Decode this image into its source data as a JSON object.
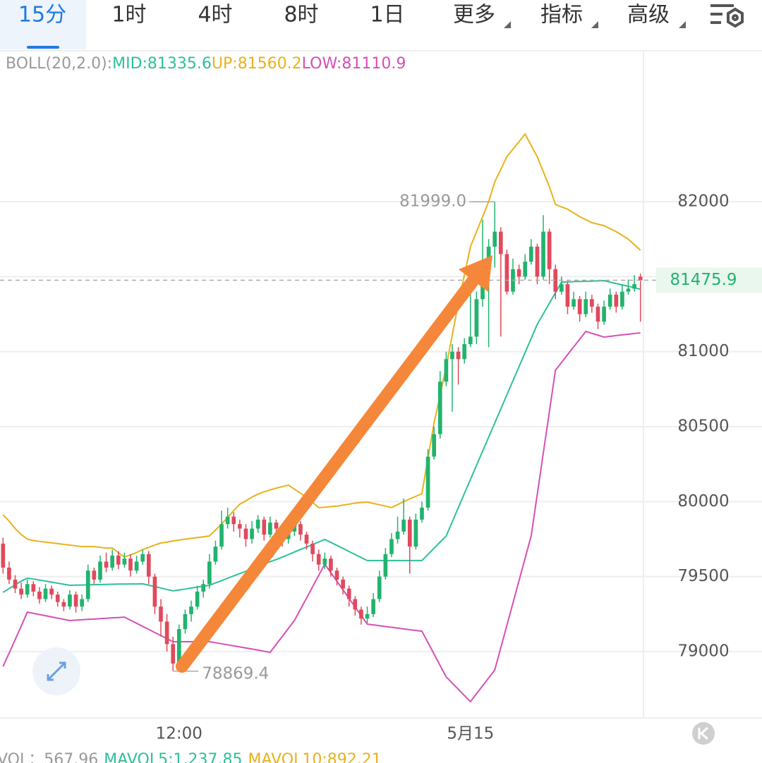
{
  "tabs": [
    "15分",
    "1时",
    "4时",
    "8时",
    "1日",
    "更多",
    "指标",
    "高级"
  ],
  "chart_data": {
    "type": "candlestick",
    "legend": {
      "label": "BOLL(20,2.0):",
      "items": [
        "MID:81335.6",
        "UP:81560.2",
        "LOW:81110.9"
      ]
    },
    "volume_legend": [
      "VOL：567.96",
      "MAVOL5:1,237.85",
      "MAVOL10:892.21"
    ],
    "categories": [
      null,
      null,
      null,
      null,
      null,
      null,
      null,
      null,
      null,
      null,
      null,
      null,
      null,
      null,
      null,
      null,
      null,
      null,
      null,
      null,
      null,
      null,
      null,
      null,
      null,
      null,
      null,
      null,
      null,
      "12:00",
      null,
      null,
      null,
      null,
      null,
      null,
      null,
      null,
      null,
      null,
      null,
      null,
      null,
      null,
      null,
      null,
      null,
      null,
      null,
      null,
      null,
      null,
      null,
      null,
      null,
      null,
      null,
      null,
      null,
      null,
      null,
      null,
      null,
      null,
      null,
      null,
      null,
      null,
      null,
      null,
      null,
      null,
      null,
      null,
      null,
      null,
      null,
      "5月15",
      null,
      null,
      null,
      null,
      null,
      null,
      null,
      null,
      null,
      null,
      null,
      null,
      null,
      null,
      null,
      null,
      null,
      null,
      null,
      null,
      null,
      null,
      null,
      null,
      null,
      null,
      null,
      null
    ],
    "ohlc": [
      [
        79720,
        79760,
        79520,
        79560
      ],
      [
        79560,
        79600,
        79450,
        79480
      ],
      [
        79480,
        79510,
        79390,
        79420
      ],
      [
        79420,
        79460,
        79350,
        79380
      ],
      [
        79380,
        79480,
        79360,
        79450
      ],
      [
        79450,
        79470,
        79370,
        79400
      ],
      [
        79400,
        79430,
        79320,
        79350
      ],
      [
        79350,
        79450,
        79330,
        79420
      ],
      [
        79420,
        79440,
        79350,
        79380
      ],
      [
        79380,
        79400,
        79300,
        79330
      ],
      [
        79330,
        79350,
        79270,
        79300
      ],
      [
        79300,
        79410,
        79280,
        79380
      ],
      [
        79380,
        79400,
        79260,
        79300
      ],
      [
        79300,
        79380,
        79270,
        79350
      ],
      [
        79350,
        79580,
        79330,
        79540
      ],
      [
        79540,
        79560,
        79450,
        79480
      ],
      [
        79480,
        79640,
        79460,
        79600
      ],
      [
        79600,
        79660,
        79530,
        79560
      ],
      [
        79560,
        79680,
        79540,
        79640
      ],
      [
        79640,
        79670,
        79550,
        79580
      ],
      [
        79580,
        79660,
        79560,
        79620
      ],
      [
        79620,
        79650,
        79500,
        79540
      ],
      [
        79540,
        79640,
        79520,
        79600
      ],
      [
        79600,
        79680,
        79580,
        79650
      ],
      [
        79650,
        79670,
        79450,
        79500
      ],
      [
        79500,
        79520,
        79250,
        79300
      ],
      [
        79300,
        79350,
        79100,
        79200
      ],
      [
        79200,
        79250,
        79000,
        79050
      ],
      [
        79050,
        79100,
        78869.4,
        78920
      ],
      [
        78920,
        79180,
        78900,
        79150
      ],
      [
        79150,
        79280,
        79120,
        79250
      ],
      [
        79250,
        79340,
        79200,
        79300
      ],
      [
        79300,
        79440,
        79280,
        79400
      ],
      [
        79400,
        79480,
        79360,
        79450
      ],
      [
        79450,
        79650,
        79420,
        79600
      ],
      [
        79600,
        79740,
        79580,
        79700
      ],
      [
        79700,
        79940,
        79680,
        79850
      ],
      [
        79850,
        79960,
        79820,
        79900
      ],
      [
        79900,
        79930,
        79800,
        79850
      ],
      [
        79850,
        79880,
        79760,
        79820
      ],
      [
        79820,
        79850,
        79700,
        79750
      ],
      [
        79750,
        79870,
        79720,
        79820
      ],
      [
        79820,
        79910,
        79790,
        79880
      ],
      [
        79880,
        79900,
        79740,
        79780
      ],
      [
        79780,
        79900,
        79760,
        79860
      ],
      [
        79860,
        79880,
        79780,
        79820
      ],
      [
        79820,
        79850,
        79700,
        79750
      ],
      [
        79750,
        79840,
        79720,
        79800
      ],
      [
        79800,
        79880,
        79770,
        79850
      ],
      [
        79850,
        79870,
        79740,
        79780
      ],
      [
        79780,
        79800,
        79680,
        79720
      ],
      [
        79720,
        79740,
        79600,
        79650
      ],
      [
        79650,
        79680,
        79540,
        79580
      ],
      [
        79580,
        79660,
        79550,
        79620
      ],
      [
        79620,
        79640,
        79500,
        79540
      ],
      [
        79540,
        79560,
        79440,
        79480
      ],
      [
        79480,
        79500,
        79380,
        79420
      ],
      [
        79420,
        79440,
        79300,
        79350
      ],
      [
        79350,
        79370,
        79240,
        79280
      ],
      [
        79280,
        79300,
        79180,
        79220
      ],
      [
        79220,
        79300,
        79190,
        79250
      ],
      [
        79250,
        79390,
        79230,
        79350
      ],
      [
        79350,
        79540,
        79330,
        79500
      ],
      [
        79500,
        79690,
        79480,
        79650
      ],
      [
        79650,
        79790,
        79630,
        79750
      ],
      [
        79750,
        79900,
        79720,
        79800
      ],
      [
        79800,
        80020,
        79780,
        79880
      ],
      [
        79880,
        79900,
        79520,
        79700
      ],
      [
        79700,
        79920,
        79680,
        79880
      ],
      [
        79880,
        80000,
        79860,
        79960
      ],
      [
        79960,
        80350,
        79940,
        80300
      ],
      [
        80300,
        80500,
        80280,
        80450
      ],
      [
        80450,
        80870,
        80420,
        80800
      ],
      [
        80800,
        81000,
        80770,
        80950
      ],
      [
        80950,
        81050,
        80600,
        81000
      ],
      [
        81000,
        81030,
        80780,
        80950
      ],
      [
        80950,
        81090,
        80920,
        81050
      ],
      [
        81050,
        81400,
        81030,
        81100
      ],
      [
        81100,
        81400,
        81050,
        81350
      ],
      [
        81350,
        81880,
        81300,
        81600
      ],
      [
        81600,
        81750,
        81030,
        81700
      ],
      [
        81700,
        81999,
        81560,
        81800
      ],
      [
        81800,
        81830,
        81100,
        81650
      ],
      [
        81650,
        81680,
        81380,
        81400
      ],
      [
        81400,
        81620,
        81380,
        81550
      ],
      [
        81550,
        81580,
        81450,
        81500
      ],
      [
        81500,
        81650,
        81480,
        81600
      ],
      [
        81600,
        81750,
        81580,
        81700
      ],
      [
        81700,
        81720,
        81450,
        81500
      ],
      [
        81500,
        81910,
        81480,
        81800
      ],
      [
        81800,
        81820,
        81450,
        81550
      ],
      [
        81550,
        81580,
        81350,
        81400
      ],
      [
        81400,
        81500,
        81380,
        81450
      ],
      [
        81450,
        81470,
        81250,
        81300
      ],
      [
        81300,
        81400,
        81280,
        81350
      ],
      [
        81350,
        81370,
        81200,
        81250
      ],
      [
        81250,
        81400,
        81230,
        81350
      ],
      [
        81350,
        81380,
        81260,
        81300
      ],
      [
        81300,
        81320,
        81150,
        81200
      ],
      [
        81200,
        81340,
        81180,
        81300
      ],
      [
        81300,
        81420,
        81280,
        81380
      ],
      [
        81380,
        81400,
        81260,
        81300
      ],
      [
        81300,
        81450,
        81280,
        81400
      ],
      [
        81400,
        81480,
        81380,
        81420
      ],
      [
        81420,
        81510,
        81400,
        81450
      ],
      [
        81500,
        81520,
        81200,
        81475.9
      ]
    ],
    "up_color": "#22b36e",
    "down_color": "#e04a5c",
    "series": [
      {
        "color": "#2cc09a",
        "values": [
          79395,
          79420,
          79445,
          79470,
          79489,
          79484,
          79477,
          79470,
          79463,
          79456,
          79449,
          79442,
          79443,
          79444,
          79445,
          79446,
          79447,
          79448,
          79449,
          79450,
          79450,
          79451,
          79451,
          79452,
          79443,
          79433,
          79424,
          79414,
          79405,
          79411,
          79417,
          79424,
          79430,
          79436,
          79442,
          79458,
          79473,
          79489,
          79505,
          79520,
          79536,
          79552,
          79567,
          79583,
          79599,
          79614,
          79630,
          79647,
          79664,
          79681,
          79697,
          79714,
          79731,
          79748,
          79728,
          79708,
          79688,
          79667,
          79647,
          79627,
          79607,
          79607,
          79607,
          79607,
          79607,
          79607,
          79607,
          79607,
          79607,
          79607,
          79648,
          79689,
          79730,
          79771,
          79865,
          79960,
          80054,
          80148,
          80242,
          80336,
          80430,
          80524,
          80618,
          80712,
          80806,
          80900,
          80994,
          81088,
          81182,
          81252,
          81323,
          81393,
          81464,
          81465,
          81467,
          81468,
          81469,
          81470,
          81472,
          81473,
          81464,
          81454,
          81445,
          81436,
          81426,
          81417
        ]
      },
      {
        "color": "#e8b21a",
        "values": [
          79912,
          79870,
          79820,
          79780,
          79750,
          79740,
          79735,
          79730,
          79725,
          79720,
          79715,
          79710,
          79705,
          79700,
          79700,
          79700,
          79695,
          79690,
          79690,
          79660,
          79630,
          79645,
          79660,
          79680,
          79695,
          79710,
          79724,
          79730,
          79737,
          79744,
          79750,
          79755,
          79760,
          79765,
          79771,
          79810,
          79850,
          79895,
          79940,
          79983,
          80005,
          80030,
          80050,
          80065,
          80078,
          80090,
          80100,
          80110,
          80083,
          80056,
          80030,
          79995,
          79960,
          79963,
          79967,
          79970,
          79977,
          79983,
          79990,
          79994,
          79997,
          79988,
          79979,
          79970,
          79960,
          79980,
          80000,
          80018,
          80035,
          80053,
          80290,
          80524,
          80710,
          80900,
          81110,
          81323,
          81510,
          81700,
          81800,
          81900,
          82000,
          82132,
          82215,
          82300,
          82350,
          82400,
          82451,
          82375,
          82300,
          82200,
          82100,
          81981,
          81965,
          81950,
          81925,
          81900,
          81880,
          81860,
          81850,
          81840,
          81820,
          81800,
          81775,
          81750,
          81713,
          81676
        ]
      },
      {
        "color": "#d64fb6",
        "values": [
          78901,
          78990,
          79080,
          79170,
          79263,
          79255,
          79247,
          79239,
          79231,
          79223,
          79215,
          79207,
          79210,
          79212,
          79215,
          79217,
          79220,
          79222,
          79225,
          79227,
          79230,
          79209,
          79189,
          79168,
          79148,
          79127,
          79107,
          79086,
          79066,
          79066,
          79066,
          79066,
          79066,
          79066,
          79066,
          79059,
          79052,
          79045,
          79038,
          79031,
          79024,
          79017,
          79010,
          79002,
          78995,
          79048,
          79101,
          79154,
          79207,
          79282,
          79357,
          79433,
          79508,
          79583,
          79526,
          79469,
          79412,
          79354,
          79297,
          79240,
          79183,
          79178,
          79173,
          79167,
          79162,
          79157,
          79151,
          79146,
          79141,
          79136,
          79060,
          78984,
          78907,
          78831,
          78790,
          78749,
          78707,
          78666,
          78719,
          78772,
          78824,
          78877,
          79026,
          79175,
          79324,
          79473,
          79622,
          79771,
          80047,
          80324,
          80600,
          80876,
          80928,
          80980,
          81031,
          81083,
          81135,
          81122,
          81110,
          81097,
          81102,
          81107,
          81112,
          81116,
          81121,
          81125
        ]
      }
    ],
    "ylim": [
      78558,
      82992
    ],
    "yticks": [
      79000,
      79500,
      80000,
      80500,
      81000,
      81500,
      82000
    ],
    "high_mark": {
      "value": 81999,
      "label": "81999.0"
    },
    "low_mark": 78869.4,
    "last_price": 81475.9,
    "grid": true
  }
}
